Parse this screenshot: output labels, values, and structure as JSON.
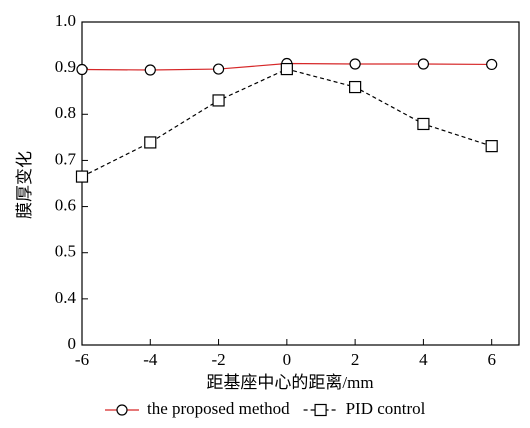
{
  "chart_data": {
    "type": "line",
    "x_label": "距基座中心的距离/mm",
    "y_label": "膜厚变化",
    "x": [
      -6,
      -4,
      -2,
      0,
      2,
      4,
      6
    ],
    "series": [
      {
        "name": "the proposed method",
        "color": "#d62728",
        "dash": "solid",
        "marker": "circle",
        "values": [
          0.897,
          0.896,
          0.898,
          0.91,
          0.909,
          0.909,
          0.908
        ]
      },
      {
        "name": "PID control",
        "color": "#000000",
        "dash": "dashed",
        "marker": "square",
        "values": [
          0.665,
          0.739,
          0.83,
          0.898,
          0.859,
          0.779,
          0.731
        ]
      }
    ],
    "xlim": [
      -6,
      6.8
    ],
    "xticks": [
      -6,
      -4,
      -2,
      0,
      2,
      4,
      6
    ],
    "ylim": [
      0,
      1
    ],
    "yticks": [
      0,
      0.4,
      0.5,
      0.6,
      0.7,
      0.8,
      0.9,
      {
        "value": 1,
        "label": "1.0"
      }
    ],
    "legend": "bottom"
  }
}
